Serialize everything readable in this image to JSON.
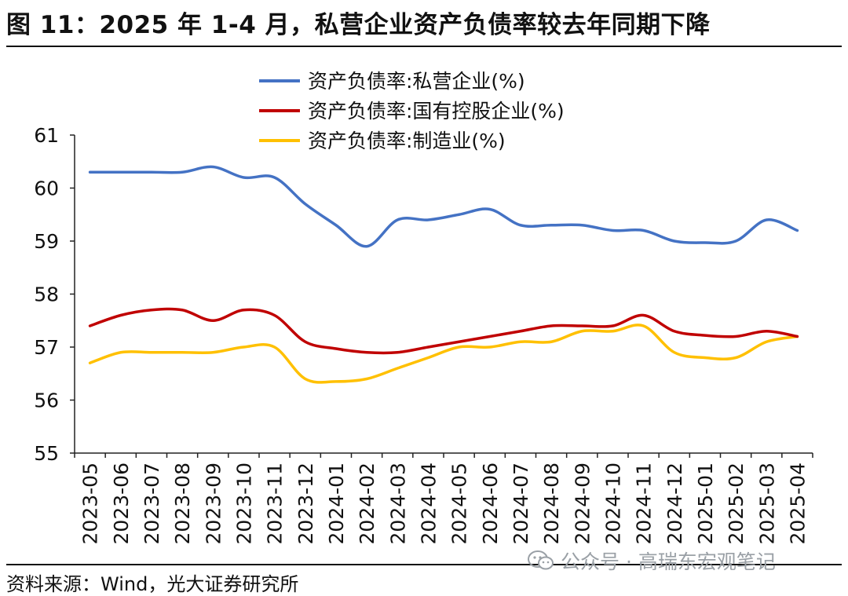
{
  "title": "图 11：2025 年 1-4 月，私营企业资产负债率较去年同期下降",
  "source": "资料来源：Wind，光大证券研究所",
  "watermark": {
    "icon": "wechat-icon",
    "text": "公众号 · 高瑞东宏观笔记"
  },
  "chart_data": {
    "type": "line",
    "categories": [
      "2023-05",
      "2023-06",
      "2023-07",
      "2023-08",
      "2023-09",
      "2023-10",
      "2023-11",
      "2023-12",
      "2024-01",
      "2024-02",
      "2024-03",
      "2024-04",
      "2024-05",
      "2024-06",
      "2024-07",
      "2024-08",
      "2024-09",
      "2024-10",
      "2024-11",
      "2024-12",
      "2025-01",
      "2025-02",
      "2025-03",
      "2025-04"
    ],
    "ylim": [
      55,
      61
    ],
    "yticks": [
      "55",
      "56",
      "57",
      "58",
      "59",
      "60",
      "61"
    ],
    "legend_position": "top",
    "grid": false,
    "series": [
      {
        "name": "资产负债率:私营企业(%)",
        "color": "#4472C4",
        "values": [
          60.3,
          60.3,
          60.3,
          60.3,
          60.4,
          60.2,
          60.2,
          59.7,
          59.3,
          58.9,
          59.4,
          59.4,
          59.5,
          59.6,
          59.3,
          59.3,
          59.3,
          59.2,
          59.2,
          59.0,
          58.97,
          59.0,
          59.4,
          59.2
        ]
      },
      {
        "name": "资产负债率:国有控股企业(%)",
        "color": "#C00000",
        "values": [
          57.4,
          57.6,
          57.7,
          57.7,
          57.5,
          57.7,
          57.6,
          57.1,
          56.97,
          56.9,
          56.9,
          57.0,
          57.1,
          57.2,
          57.3,
          57.4,
          57.4,
          57.4,
          57.6,
          57.3,
          57.22,
          57.2,
          57.3,
          57.2
        ]
      },
      {
        "name": "资产负债率:制造业(%)",
        "color": "#FFC000",
        "values": [
          56.7,
          56.9,
          56.9,
          56.9,
          56.9,
          57.0,
          57.0,
          56.4,
          56.35,
          56.4,
          56.6,
          56.8,
          57.0,
          57.0,
          57.1,
          57.1,
          57.3,
          57.3,
          57.4,
          56.9,
          56.8,
          56.8,
          57.1,
          57.2
        ]
      }
    ]
  }
}
